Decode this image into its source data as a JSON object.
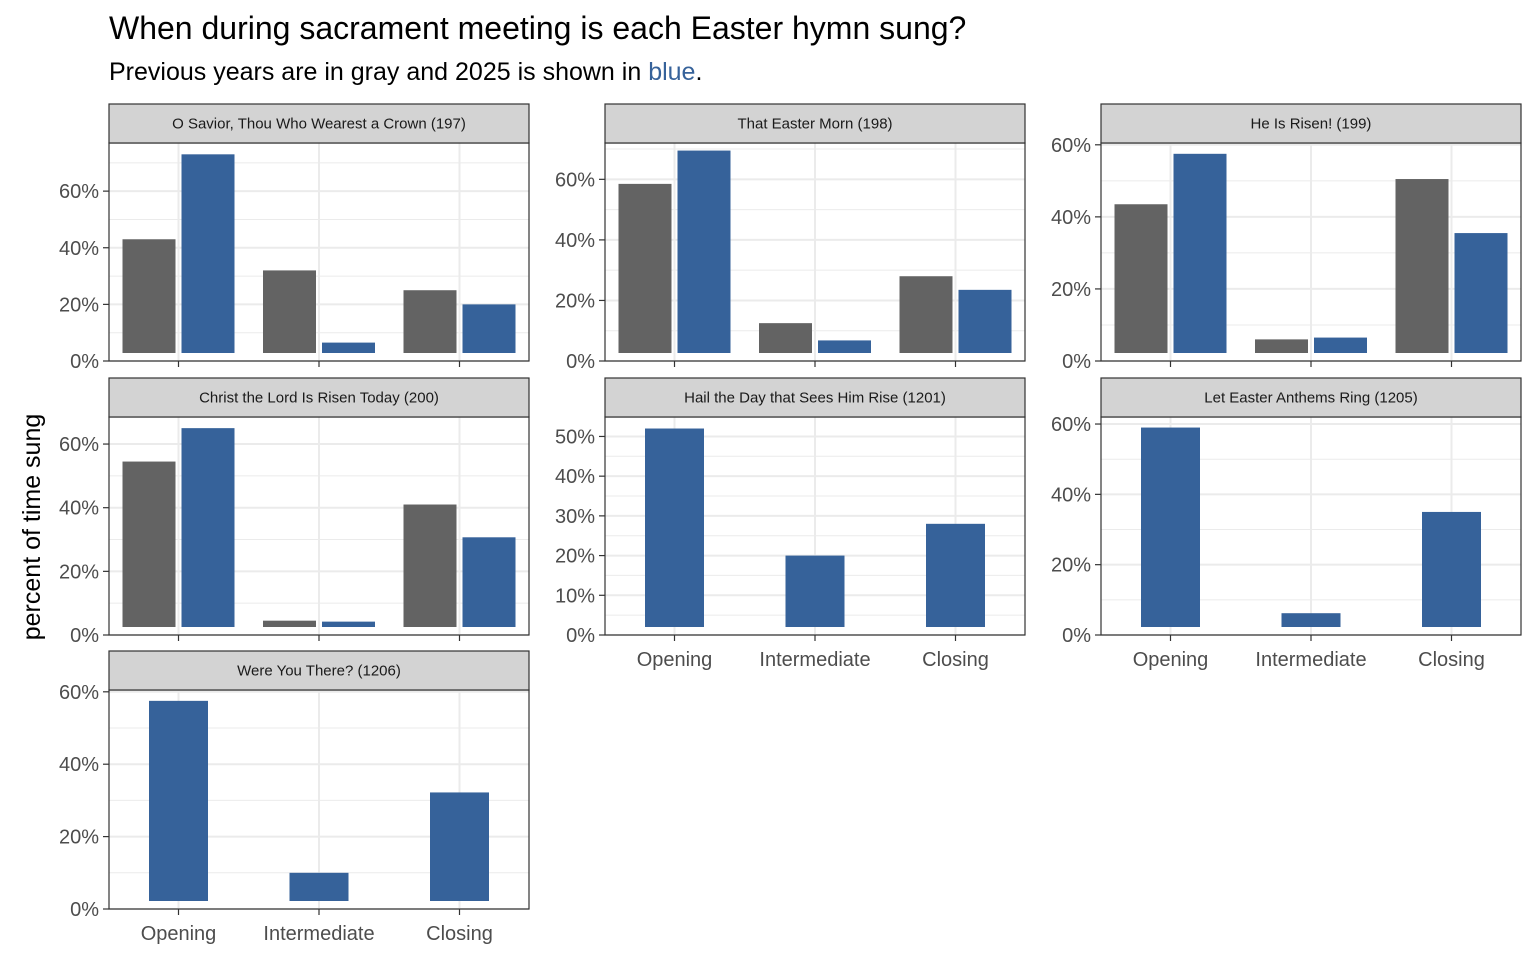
{
  "title": "When during sacrament meeting is each Easter hymn sung?",
  "subtitle": {
    "before": "Previous years are in gray and 2025 is shown in ",
    "highlight": "blue",
    "after": "."
  },
  "colors": {
    "previous": "#636363",
    "current": "#36629a",
    "strip": "#d3d3d3",
    "grid": "#ebebeb"
  },
  "chart_data": {
    "type": "bar",
    "ylabel": "percent of time sung",
    "categories": [
      "Opening",
      "Intermediate",
      "Closing"
    ],
    "series_names": [
      "Previous years",
      "2025"
    ],
    "panels": [
      {
        "label": "O Savior, Thou Who Wearest a Crown (197)",
        "ylim": [
          0,
          0.77
        ],
        "yticks": [
          0,
          0.2,
          0.4,
          0.6
        ],
        "ytick_labels": [
          "0%",
          "20%",
          "40%",
          "60%"
        ],
        "previous": [
          0.43,
          0.32,
          0.25
        ],
        "current": [
          0.73,
          0.065,
          0.2
        ]
      },
      {
        "label": "That Easter Morn (198)",
        "ylim": [
          0,
          0.72
        ],
        "yticks": [
          0,
          0.2,
          0.4,
          0.6
        ],
        "ytick_labels": [
          "0%",
          "20%",
          "40%",
          "60%"
        ],
        "previous": [
          0.585,
          0.125,
          0.28
        ],
        "current": [
          0.695,
          0.068,
          0.235
        ]
      },
      {
        "label": "He Is Risen! (199)",
        "ylim": [
          0,
          0.605
        ],
        "yticks": [
          0,
          0.2,
          0.4,
          0.6
        ],
        "ytick_labels": [
          "0%",
          "20%",
          "40%",
          "60%"
        ],
        "previous": [
          0.435,
          0.06,
          0.505
        ],
        "current": [
          0.575,
          0.065,
          0.355
        ]
      },
      {
        "label": "Christ the Lord Is Risen Today (200)",
        "ylim": [
          0,
          0.685
        ],
        "yticks": [
          0,
          0.2,
          0.4,
          0.6
        ],
        "ytick_labels": [
          "0%",
          "20%",
          "40%",
          "60%"
        ],
        "previous": [
          0.545,
          0.045,
          0.41
        ],
        "current": [
          0.65,
          0.042,
          0.307
        ]
      },
      {
        "label": "Hail the Day that Sees Him Rise (1201)",
        "ylim": [
          0,
          0.549
        ],
        "yticks": [
          0,
          0.1,
          0.2,
          0.3,
          0.4,
          0.5
        ],
        "ytick_labels": [
          "0%",
          "10%",
          "20%",
          "30%",
          "40%",
          "50%"
        ],
        "previous": [],
        "current": [
          0.52,
          0.2,
          0.28
        ]
      },
      {
        "label": "Let Easter Anthems Ring (1205)",
        "ylim": [
          0,
          0.62
        ],
        "yticks": [
          0,
          0.2,
          0.4,
          0.6
        ],
        "ytick_labels": [
          "0%",
          "20%",
          "40%",
          "60%"
        ],
        "previous": [],
        "current": [
          0.59,
          0.062,
          0.35
        ]
      },
      {
        "label": "Were You There? (1206)",
        "ylim": [
          0,
          0.605
        ],
        "yticks": [
          0,
          0.2,
          0.4,
          0.6
        ],
        "ytick_labels": [
          "0%",
          "20%",
          "40%",
          "60%"
        ],
        "previous": [],
        "current": [
          0.575,
          0.1,
          0.322
        ]
      }
    ]
  }
}
